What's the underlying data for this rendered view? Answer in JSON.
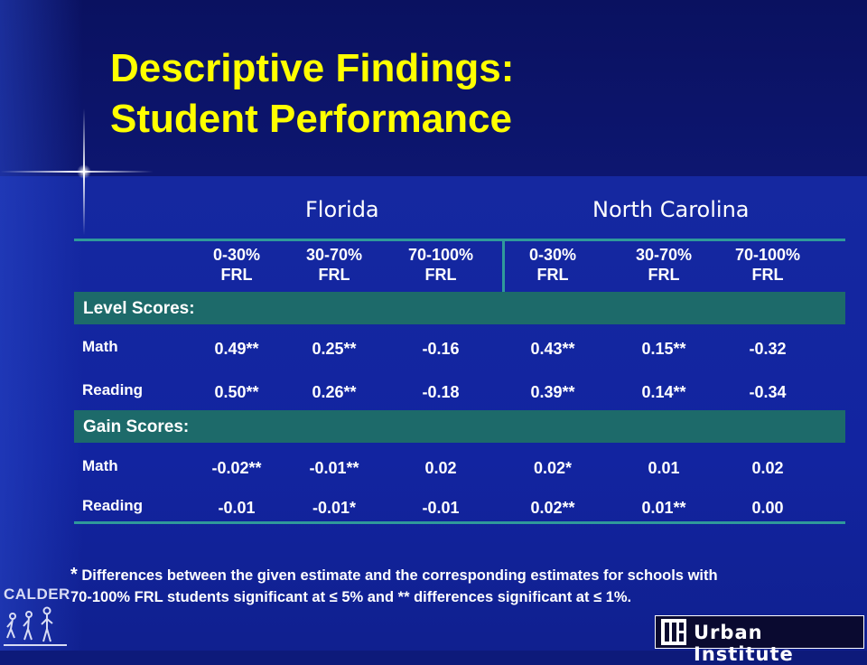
{
  "title": {
    "line1": "Descriptive Findings:",
    "line2": "Student Performance"
  },
  "states": {
    "florida": "Florida",
    "north_carolina": "North Carolina"
  },
  "columns": [
    {
      "line1": "0-30%",
      "line2": "FRL"
    },
    {
      "line1": "30-70%",
      "line2": "FRL"
    },
    {
      "line1": "70-100%",
      "line2": "FRL"
    },
    {
      "line1": "0-30%",
      "line2": "FRL"
    },
    {
      "line1": "30-70%",
      "line2": "FRL"
    },
    {
      "line1": "70-100%",
      "line2": "FRL"
    }
  ],
  "sections": [
    {
      "label": "Level Scores:",
      "rows": [
        {
          "label": "Math",
          "values": [
            "0.49**",
            "0.25**",
            "-0.16",
            "0.43**",
            "0.15**",
            "-0.32"
          ]
        },
        {
          "label": "Reading",
          "values": [
            "0.50**",
            "0.26**",
            "-0.18",
            "0.39**",
            "0.14**",
            "-0.34"
          ]
        }
      ]
    },
    {
      "label": "Gain Scores:",
      "rows": [
        {
          "label": "Math",
          "values": [
            "-0.02**",
            "-0.01**",
            "0.02",
            "0.02*",
            "0.01",
            "0.02"
          ]
        },
        {
          "label": "Reading",
          "values": [
            "-0.01",
            "-0.01*",
            "-0.01",
            "0.02**",
            "0.01**",
            "0.00"
          ]
        }
      ]
    }
  ],
  "footnote": {
    "star": "*",
    "line1": "Differences between the given estimate and the corresponding estimates for schools with",
    "line2": "70-100% FRL students significant at ≤ 5% and ** differences significant at ≤ 1%."
  },
  "logos": {
    "calder": "CALDER",
    "urban": "Urban Institute"
  },
  "colors": {
    "title": "#ffff00",
    "band": "#1d6a6a",
    "rule": "#2f9a9a",
    "background": "#1224a0"
  }
}
